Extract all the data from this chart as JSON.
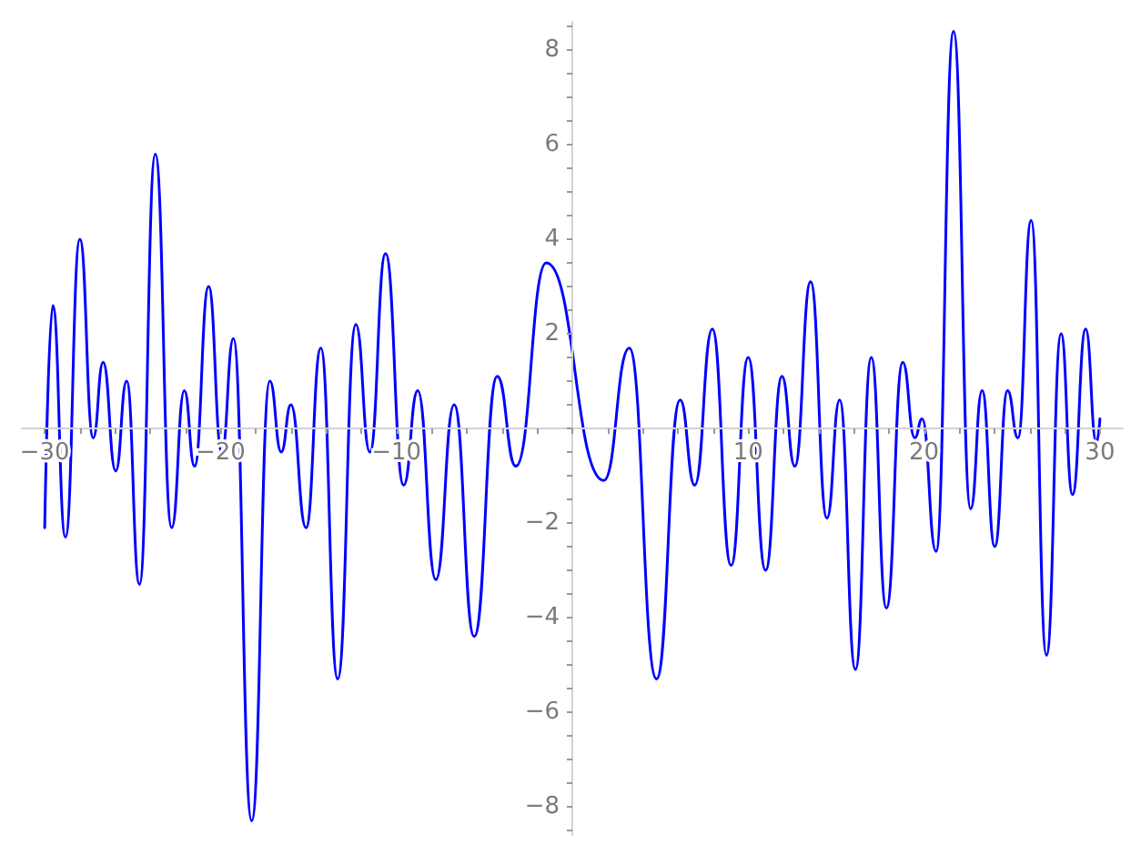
{
  "chart_data": {
    "type": "line",
    "x": [
      -30,
      -29.54,
      -28.82,
      -28.0,
      -27.24,
      -26.68,
      -25.96,
      -25.34,
      -24.61,
      -23.71,
      -22.78,
      -22.06,
      -21.48,
      -20.68,
      -19.93,
      -19.27,
      -18.23,
      -17.2,
      -16.55,
      -16.0,
      -15.14,
      -14.3,
      -13.34,
      -12.31,
      -11.51,
      -10.62,
      -9.59,
      -8.79,
      -7.76,
      -6.72,
      -5.58,
      -4.27,
      -3.21,
      -1.48,
      1.79,
      3.24,
      4.79,
      6.13,
      6.96,
      7.96,
      9.03,
      10.0,
      10.99,
      11.92,
      12.65,
      13.55,
      14.48,
      15.2,
      16.1,
      17.0,
      17.86,
      18.79,
      19.47,
      19.89,
      20.68,
      21.68,
      22.65,
      23.3,
      24.02,
      24.75,
      25.34,
      26.09,
      26.96,
      27.79,
      28.44,
      29.19,
      29.8,
      30.0
    ],
    "values": [
      -2.1,
      2.6,
      -2.3,
      4.0,
      -0.2,
      1.4,
      -0.9,
      1.0,
      -3.3,
      5.8,
      -2.1,
      0.8,
      -0.8,
      3.0,
      -0.5,
      1.9,
      -8.3,
      1.0,
      -0.5,
      0.5,
      -2.1,
      1.7,
      -5.3,
      2.2,
      -0.5,
      3.7,
      -1.2,
      0.8,
      -3.2,
      0.5,
      -4.4,
      1.1,
      -0.8,
      3.5,
      -1.1,
      1.7,
      -5.3,
      0.6,
      -1.2,
      2.1,
      -2.9,
      1.5,
      -3.0,
      1.1,
      -0.8,
      3.1,
      -1.9,
      0.6,
      -5.1,
      1.5,
      -3.8,
      1.4,
      -0.2,
      0.2,
      -2.6,
      8.4,
      -1.7,
      0.8,
      -2.5,
      0.8,
      -0.2,
      4.4,
      -4.8,
      2.0,
      -1.4,
      2.1,
      -0.3,
      0.2
    ],
    "color": "#0000ff",
    "line_style": "solid",
    "grid": false,
    "xlim": [
      -31.3,
      31.3
    ],
    "ylim": [
      -8.6,
      8.6
    ],
    "xticks": [
      {
        "value": -30,
        "label": "−30"
      },
      {
        "value": -28,
        "label": null
      },
      {
        "value": -26,
        "label": null
      },
      {
        "value": -24,
        "label": null
      },
      {
        "value": -22,
        "label": null
      },
      {
        "value": -20,
        "label": "−20"
      },
      {
        "value": -18,
        "label": null
      },
      {
        "value": -16,
        "label": null
      },
      {
        "value": -14,
        "label": null
      },
      {
        "value": -12,
        "label": null
      },
      {
        "value": -10,
        "label": "−10"
      },
      {
        "value": -8,
        "label": null
      },
      {
        "value": -6,
        "label": null
      },
      {
        "value": -4,
        "label": null
      },
      {
        "value": -2,
        "label": null
      },
      {
        "value": 0,
        "label": null
      },
      {
        "value": 2,
        "label": null
      },
      {
        "value": 4,
        "label": null
      },
      {
        "value": 6,
        "label": null
      },
      {
        "value": 8,
        "label": null
      },
      10,
      {
        "value": 12,
        "label": null
      },
      {
        "value": 14,
        "label": null
      },
      {
        "value": 16,
        "label": null
      },
      {
        "value": 18,
        "label": null
      },
      20,
      {
        "value": 22,
        "label": null
      },
      {
        "value": 24,
        "label": null
      },
      {
        "value": 26,
        "label": null
      },
      {
        "value": 28,
        "label": null
      },
      30
    ],
    "yticks": [
      {
        "value": -8.5,
        "label": null
      },
      {
        "value": -8,
        "label": "−8"
      },
      {
        "value": -7.5,
        "label": null
      },
      {
        "value": -7,
        "label": null
      },
      {
        "value": -6.5,
        "label": null
      },
      {
        "value": -6,
        "label": "−6"
      },
      {
        "value": -5.5,
        "label": null
      },
      {
        "value": -5,
        "label": null
      },
      {
        "value": -4.5,
        "label": null
      },
      {
        "value": -4,
        "label": "−4"
      },
      {
        "value": -3.5,
        "label": null
      },
      {
        "value": -3,
        "label": null
      },
      {
        "value": -2.5,
        "label": null
      },
      {
        "value": -2,
        "label": "−2"
      },
      {
        "value": -1.5,
        "label": null
      },
      {
        "value": -1,
        "label": null
      },
      {
        "value": -0.5,
        "label": null
      },
      {
        "value": 0,
        "label": null
      },
      {
        "value": 0.5,
        "label": null
      },
      {
        "value": 1,
        "label": null
      },
      {
        "value": 1.5,
        "label": null
      },
      2,
      {
        "value": 2.5,
        "label": null
      },
      {
        "value": 3,
        "label": null
      },
      {
        "value": 3.5,
        "label": null
      },
      4,
      {
        "value": 4.5,
        "label": null
      },
      {
        "value": 5,
        "label": null
      },
      {
        "value": 5.5,
        "label": null
      },
      6,
      {
        "value": 6.5,
        "label": null
      },
      {
        "value": 7,
        "label": null
      },
      {
        "value": 7.5,
        "label": null
      },
      8,
      {
        "value": 8.5,
        "label": null
      }
    ]
  }
}
